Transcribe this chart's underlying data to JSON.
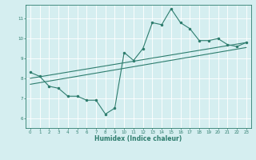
{
  "x": [
    0,
    1,
    2,
    3,
    4,
    5,
    6,
    7,
    8,
    9,
    10,
    11,
    12,
    13,
    14,
    15,
    16,
    17,
    18,
    19,
    20,
    21,
    22,
    23
  ],
  "y_line": [
    8.3,
    8.1,
    7.6,
    7.5,
    7.1,
    7.1,
    6.9,
    6.9,
    6.2,
    6.5,
    9.3,
    8.9,
    9.5,
    10.8,
    10.7,
    11.5,
    10.8,
    10.5,
    9.9,
    9.9,
    10.0,
    9.7,
    9.6,
    9.8
  ],
  "trend_start_y": 8.0,
  "trend_end_y": 9.8,
  "trend2_start_y": 7.7,
  "trend2_end_y": 9.55,
  "xlim": [
    -0.5,
    23.5
  ],
  "ylim": [
    5.5,
    11.7
  ],
  "yticks": [
    6,
    7,
    8,
    9,
    10,
    11
  ],
  "xticks": [
    0,
    1,
    2,
    3,
    4,
    5,
    6,
    7,
    8,
    9,
    10,
    11,
    12,
    13,
    14,
    15,
    16,
    17,
    18,
    19,
    20,
    21,
    22,
    23
  ],
  "xlabel": "Humidex (Indice chaleur)",
  "line_color": "#2e7d6e",
  "bg_color": "#d5eef0",
  "grid_color": "#ffffff",
  "axis_color": "#2e7d6e",
  "label_color": "#2e7d6e",
  "title_color": "#2e7d6e"
}
